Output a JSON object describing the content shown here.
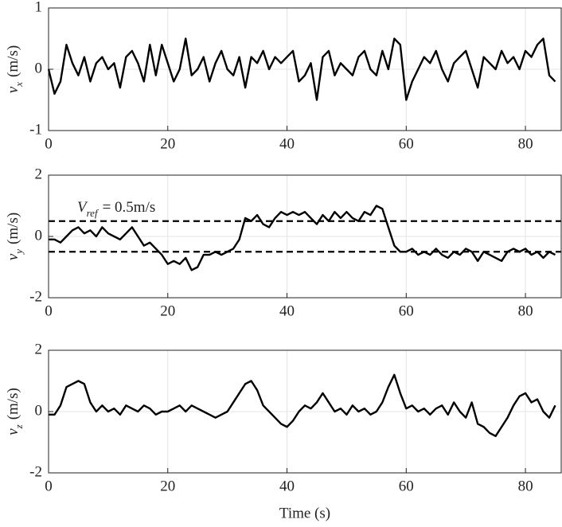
{
  "chart_data": [
    {
      "type": "line",
      "color": "#000000",
      "grid": true,
      "ylabel": {
        "symbol": "v",
        "subscript": "x",
        "unit": "(m/s)"
      },
      "xlim": [
        0,
        86
      ],
      "xticks": [
        0,
        20,
        40,
        60,
        80
      ],
      "ylim": [
        -1,
        1
      ],
      "yticks": [
        -1,
        0,
        1
      ],
      "x": [
        0,
        1,
        2,
        3,
        4,
        5,
        6,
        7,
        8,
        9,
        10,
        11,
        12,
        13,
        14,
        15,
        16,
        17,
        18,
        19,
        20,
        21,
        22,
        23,
        24,
        25,
        26,
        27,
        28,
        29,
        30,
        31,
        32,
        33,
        34,
        35,
        36,
        37,
        38,
        39,
        40,
        41,
        42,
        43,
        44,
        45,
        46,
        47,
        48,
        49,
        50,
        51,
        52,
        53,
        54,
        55,
        56,
        57,
        58,
        59,
        60,
        61,
        62,
        63,
        64,
        65,
        66,
        67,
        68,
        69,
        70,
        71,
        72,
        73,
        74,
        75,
        76,
        77,
        78,
        79,
        80,
        81,
        82,
        83,
        84,
        85
      ],
      "values": [
        0,
        -0.4,
        -0.2,
        0.4,
        0.1,
        -0.1,
        0.2,
        -0.2,
        0.1,
        0.2,
        0.0,
        0.1,
        -0.3,
        0.2,
        0.3,
        0.1,
        -0.2,
        0.4,
        -0.1,
        0.4,
        0.1,
        -0.2,
        0.0,
        0.5,
        -0.1,
        0.0,
        0.2,
        -0.2,
        0.1,
        0.3,
        0.0,
        -0.1,
        0.2,
        -0.3,
        0.2,
        0.1,
        0.3,
        0.0,
        0.2,
        0.1,
        0.2,
        0.3,
        -0.2,
        -0.1,
        0.1,
        -0.5,
        0.2,
        0.3,
        -0.1,
        0.1,
        0.0,
        -0.1,
        0.2,
        0.3,
        0.0,
        -0.1,
        0.3,
        0.0,
        0.5,
        0.4,
        -0.5,
        -0.2,
        0.0,
        0.2,
        0.1,
        0.3,
        0.0,
        -0.2,
        0.1,
        0.2,
        0.3,
        0.0,
        -0.3,
        0.2,
        0.1,
        0.0,
        0.3,
        0.1,
        0.2,
        0.0,
        0.3,
        0.2,
        0.4,
        0.5,
        -0.1,
        -0.2
      ]
    },
    {
      "type": "line",
      "color": "#000000",
      "grid": true,
      "ylabel": {
        "symbol": "v",
        "subscript": "y",
        "unit": "(m/s)"
      },
      "hlines": [
        0.5,
        -0.5
      ],
      "annotation": {
        "symbol": "V",
        "subscript": "ref",
        "text": "= 0.5m/s"
      },
      "xlim": [
        0,
        86
      ],
      "xticks": [
        0,
        20,
        40,
        60,
        80
      ],
      "ylim": [
        -2,
        2
      ],
      "yticks": [
        -2,
        0,
        2
      ],
      "x": [
        0,
        1,
        2,
        3,
        4,
        5,
        6,
        7,
        8,
        9,
        10,
        11,
        12,
        13,
        14,
        15,
        16,
        17,
        18,
        19,
        20,
        21,
        22,
        23,
        24,
        25,
        26,
        27,
        28,
        29,
        30,
        31,
        32,
        33,
        34,
        35,
        36,
        37,
        38,
        39,
        40,
        41,
        42,
        43,
        44,
        45,
        46,
        47,
        48,
        49,
        50,
        51,
        52,
        53,
        54,
        55,
        56,
        57,
        58,
        59,
        60,
        61,
        62,
        63,
        64,
        65,
        66,
        67,
        68,
        69,
        70,
        71,
        72,
        73,
        74,
        75,
        76,
        77,
        78,
        79,
        80,
        81,
        82,
        83,
        84,
        85
      ],
      "values": [
        -0.1,
        -0.1,
        -0.2,
        0.0,
        0.2,
        0.3,
        0.1,
        0.2,
        0.0,
        0.3,
        0.1,
        0.0,
        -0.1,
        0.1,
        0.3,
        0.0,
        -0.3,
        -0.2,
        -0.4,
        -0.6,
        -0.9,
        -0.8,
        -0.9,
        -0.7,
        -1.1,
        -1.0,
        -0.6,
        -0.6,
        -0.5,
        -0.6,
        -0.5,
        -0.4,
        -0.1,
        0.6,
        0.5,
        0.7,
        0.4,
        0.3,
        0.6,
        0.8,
        0.7,
        0.8,
        0.7,
        0.8,
        0.6,
        0.4,
        0.7,
        0.5,
        0.8,
        0.6,
        0.8,
        0.6,
        0.5,
        0.8,
        0.7,
        1.0,
        0.9,
        0.3,
        -0.3,
        -0.5,
        -0.5,
        -0.4,
        -0.6,
        -0.5,
        -0.6,
        -0.4,
        -0.6,
        -0.7,
        -0.5,
        -0.6,
        -0.4,
        -0.5,
        -0.8,
        -0.5,
        -0.6,
        -0.7,
        -0.8,
        -0.5,
        -0.4,
        -0.5,
        -0.4,
        -0.6,
        -0.5,
        -0.7,
        -0.5,
        -0.6
      ]
    },
    {
      "type": "line",
      "color": "#000000",
      "grid": true,
      "ylabel": {
        "symbol": "v",
        "subscript": "z",
        "unit": "(m/s)"
      },
      "xlabel": "Time (s)",
      "xlim": [
        0,
        86
      ],
      "xticks": [
        0,
        20,
        40,
        60,
        80
      ],
      "ylim": [
        -2,
        2
      ],
      "yticks": [
        -2,
        0,
        2
      ],
      "x": [
        0,
        1,
        2,
        3,
        4,
        5,
        6,
        7,
        8,
        9,
        10,
        11,
        12,
        13,
        14,
        15,
        16,
        17,
        18,
        19,
        20,
        21,
        22,
        23,
        24,
        25,
        26,
        27,
        28,
        29,
        30,
        31,
        32,
        33,
        34,
        35,
        36,
        37,
        38,
        39,
        40,
        41,
        42,
        43,
        44,
        45,
        46,
        47,
        48,
        49,
        50,
        51,
        52,
        53,
        54,
        55,
        56,
        57,
        58,
        59,
        60,
        61,
        62,
        63,
        64,
        65,
        66,
        67,
        68,
        69,
        70,
        71,
        72,
        73,
        74,
        75,
        76,
        77,
        78,
        79,
        80,
        81,
        82,
        83,
        84,
        85
      ],
      "values": [
        -0.1,
        -0.1,
        0.2,
        0.8,
        0.9,
        1.0,
        0.9,
        0.3,
        0.0,
        0.2,
        0.0,
        0.1,
        -0.1,
        0.2,
        0.1,
        0.0,
        0.2,
        0.1,
        -0.1,
        0.0,
        0.0,
        0.1,
        0.2,
        0.0,
        0.2,
        0.1,
        0.0,
        -0.1,
        -0.2,
        -0.1,
        0.0,
        0.3,
        0.6,
        0.9,
        1.0,
        0.7,
        0.2,
        0.0,
        -0.2,
        -0.4,
        -0.5,
        -0.3,
        0.0,
        0.2,
        0.1,
        0.3,
        0.6,
        0.3,
        0.0,
        0.1,
        -0.1,
        0.2,
        0.0,
        0.1,
        -0.1,
        0.0,
        0.3,
        0.8,
        1.2,
        0.6,
        0.1,
        0.2,
        0.0,
        0.1,
        -0.1,
        0.1,
        0.2,
        -0.1,
        0.3,
        0.0,
        -0.2,
        0.3,
        -0.4,
        -0.5,
        -0.7,
        -0.8,
        -0.5,
        -0.2,
        0.2,
        0.5,
        0.6,
        0.3,
        0.4,
        0.0,
        -0.2,
        0.2
      ]
    }
  ]
}
